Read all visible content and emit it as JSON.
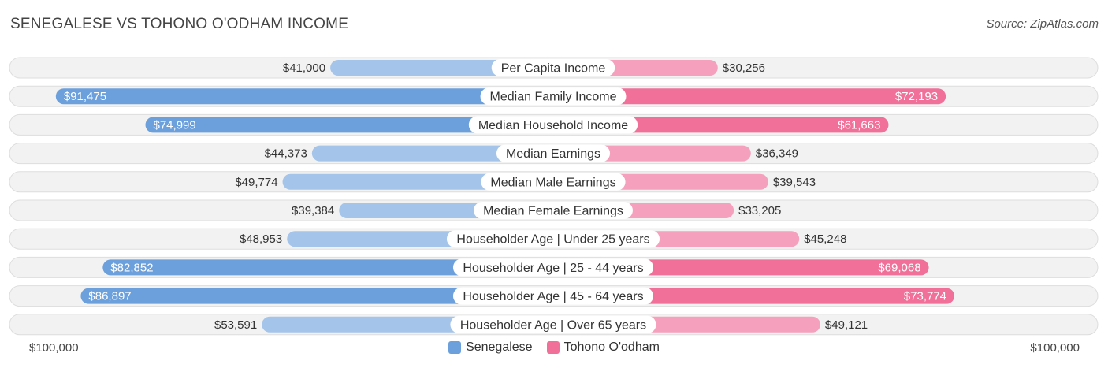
{
  "header": {
    "title": "SENEGALESE VS TOHONO O'ODHAM INCOME",
    "source": "Source: ZipAtlas.com"
  },
  "axis": {
    "left_label": "$100,000",
    "right_label": "$100,000"
  },
  "colors": {
    "left_strong": "#6ca0dc",
    "left_light": "#a4c4ea",
    "right_strong": "#f07099",
    "right_light": "#f5a0bc",
    "row_bg": "#f2f2f2",
    "row_border": "#dddddd"
  },
  "chart_data": {
    "type": "bar",
    "orientation": "horizontal-diverging",
    "max_value": 100000,
    "categories": [
      "Per Capita Income",
      "Median Family Income",
      "Median Household Income",
      "Median Earnings",
      "Median Male Earnings",
      "Median Female Earnings",
      "Householder Age | Under 25 years",
      "Householder Age | 25 - 44 years",
      "Householder Age | 45 - 64 years",
      "Householder Age | Over 65 years"
    ],
    "series": [
      {
        "name": "Senegalese",
        "side": "left",
        "values": [
          41000,
          91475,
          74999,
          44373,
          49774,
          39384,
          48953,
          82852,
          86897,
          53591
        ],
        "labels": [
          "$41,000",
          "$91,475",
          "$74,999",
          "$44,373",
          "$49,774",
          "$39,384",
          "$48,953",
          "$82,852",
          "$86,897",
          "$53,591"
        ]
      },
      {
        "name": "Tohono O'odham",
        "side": "right",
        "values": [
          30256,
          72193,
          61663,
          36349,
          39543,
          33205,
          45248,
          69068,
          73774,
          49121
        ],
        "labels": [
          "$30,256",
          "$72,193",
          "$61,663",
          "$36,349",
          "$39,543",
          "$33,205",
          "$45,248",
          "$69,068",
          "$73,774",
          "$49,121"
        ]
      }
    ],
    "legend_position": "bottom-center"
  }
}
